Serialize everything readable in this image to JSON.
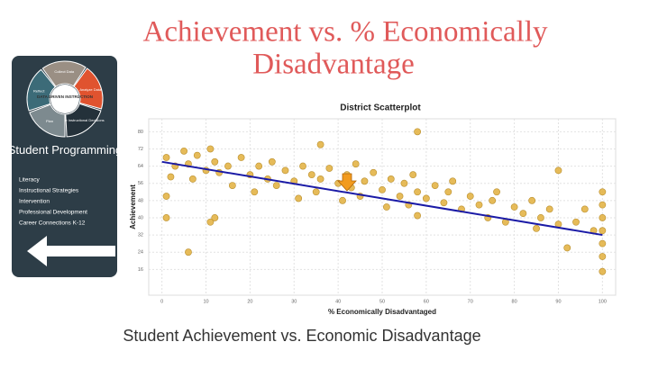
{
  "slide_title": [
    "Achievement vs. % Economically",
    "Disadvantage"
  ],
  "caption": "Student Achievement vs. Economic Disadvantage",
  "sidebar": {
    "cycle": [
      "Collect Data",
      "Analyze Data",
      "Make Instructional Decisions",
      "Plan",
      "Reflect"
    ],
    "center": "DATA DRIVEN INSTRUCTION",
    "heading": "Student Programming",
    "items": [
      "Literacy",
      "Instructional Strategies",
      "Intervention",
      "Professional Development",
      "Career Connections K-12"
    ]
  },
  "chart_data": {
    "type": "scatter",
    "title": "District Scatterplot",
    "x_label": "% Economically Disadvantaged",
    "y_label": "Achievement",
    "x": [
      1,
      1,
      1,
      2,
      3,
      5,
      6,
      6,
      7,
      8,
      10,
      11,
      11,
      12,
      13,
      15,
      16,
      18,
      20,
      21,
      22,
      24,
      25,
      26,
      28,
      30,
      31,
      32,
      34,
      35,
      36,
      38,
      40,
      41,
      42,
      43,
      44,
      45,
      46,
      48,
      50,
      51,
      52,
      54,
      55,
      56,
      57,
      58,
      58,
      60,
      62,
      64,
      65,
      66,
      68,
      70,
      72,
      74,
      75,
      76,
      78,
      80,
      82,
      84,
      85,
      86,
      88,
      90,
      92,
      94,
      96,
      98,
      100,
      100,
      100,
      100,
      100,
      100,
      100,
      58,
      12,
      36,
      90
    ],
    "values": [
      68,
      50,
      40,
      59,
      64,
      71,
      24,
      65,
      58,
      69,
      62,
      38,
      72,
      66,
      61,
      64,
      55,
      68,
      60,
      52,
      64,
      58,
      66,
      55,
      62,
      57,
      49,
      64,
      60,
      52,
      58,
      63,
      56,
      48,
      60,
      54,
      65,
      50,
      57,
      61,
      53,
      45,
      58,
      50,
      56,
      46,
      60,
      52,
      41,
      49,
      55,
      47,
      52,
      57,
      44,
      50,
      46,
      40,
      48,
      52,
      38,
      45,
      42,
      48,
      35,
      40,
      44,
      37,
      26,
      38,
      44,
      34,
      52,
      46,
      40,
      34,
      28,
      22,
      15,
      80,
      40,
      74,
      62
    ],
    "color": "#e3b447",
    "trendline": {
      "x": [
        0,
        100
      ],
      "y": [
        66,
        32
      ],
      "color": "#1a1aa6"
    },
    "xlim": [
      -3,
      103
    ],
    "ylim": [
      4,
      86
    ],
    "xticks": [
      0,
      10,
      20,
      30,
      40,
      50,
      60,
      70,
      80,
      90,
      100
    ],
    "yticks": [
      16,
      24,
      32,
      40,
      48,
      56,
      64,
      72,
      80
    ],
    "grid": true
  }
}
